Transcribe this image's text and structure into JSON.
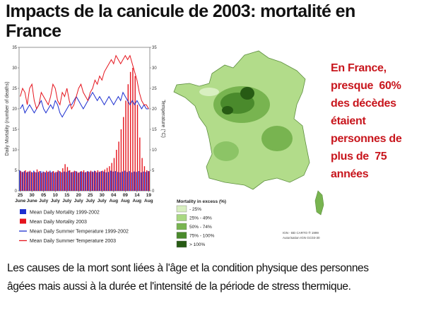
{
  "title": "Impacts de la canicule de 2003: mortalité en France",
  "chart_data": {
    "type": "bar",
    "ylabel": "Daily Mortality (number of deaths)",
    "y2label": "Temperature (°C)",
    "categories": [
      "25",
      null,
      null,
      null,
      null,
      "30",
      null,
      null,
      null,
      null,
      "05",
      null,
      null,
      null,
      null,
      "10",
      null,
      null,
      null,
      null,
      "15",
      null,
      null,
      null,
      null,
      "20",
      null,
      null,
      null,
      null,
      "25",
      null,
      null,
      null,
      null,
      "30",
      null,
      null,
      null,
      null,
      "04",
      null,
      null,
      null,
      null,
      "09",
      null,
      null,
      null,
      null,
      "14",
      null,
      null,
      null,
      null,
      "19"
    ],
    "category_months": [
      "June",
      null,
      null,
      null,
      null,
      "June",
      null,
      null,
      null,
      null,
      "July",
      null,
      null,
      null,
      null,
      "July",
      null,
      null,
      null,
      null,
      "July",
      null,
      null,
      null,
      null,
      "July",
      null,
      null,
      null,
      null,
      "July",
      null,
      null,
      null,
      null,
      "July",
      null,
      null,
      null,
      null,
      "Aug",
      null,
      null,
      null,
      null,
      "Aug",
      null,
      null,
      null,
      null,
      "Aug",
      null,
      null,
      null,
      null,
      "Aug"
    ],
    "ylim": [
      0,
      35
    ],
    "yticks": [
      0,
      5,
      10,
      15,
      20,
      25,
      30,
      35
    ],
    "y2lim": [
      0,
      35
    ],
    "y2ticks": [
      0,
      5,
      10,
      15,
      20,
      25,
      30,
      35
    ],
    "series": [
      {
        "name": "Mean Daily Mortality 1999-2002",
        "kind": "bar",
        "color": "#1d2fd0",
        "values": [
          5,
          4.6,
          4.8,
          4.5,
          4.7,
          4.6,
          4.9,
          4.5,
          4.6,
          4.8,
          4.7,
          4.5,
          4.6,
          4.9,
          4.7,
          4.4,
          4.6,
          4.8,
          4.5,
          4.7,
          4.6,
          4.9,
          4.5,
          4.6,
          4.8,
          4.4,
          4.7,
          4.6,
          4.5,
          4.8,
          4.6,
          4.7,
          4.9,
          4.5,
          4.6,
          4.8,
          4.7,
          4.5,
          4.6,
          4.9,
          4.7,
          4.8,
          4.6,
          4.5,
          4.7,
          4.9,
          4.6,
          4.8,
          4.5,
          4.7,
          4.6,
          4.8,
          4.5,
          4.7,
          4.6,
          4.8
        ]
      },
      {
        "name": "Mean Daily Mortality 2003",
        "kind": "bar",
        "color": "#e5141d",
        "values": [
          4.8,
          4.6,
          5,
          4.7,
          4.9,
          4.5,
          4.6,
          5.2,
          4.8,
          4.4,
          4.6,
          4.9,
          4.7,
          4.5,
          4.8,
          4.6,
          5,
          4.7,
          5.5,
          6.5,
          5.8,
          5,
          4.6,
          4.9,
          4.7,
          4.5,
          4.8,
          5,
          4.6,
          4.7,
          4.9,
          4.6,
          4.8,
          5,
          4.7,
          4.9,
          5.2,
          5.6,
          6,
          6.8,
          8,
          10,
          12,
          15,
          18,
          22,
          26,
          29,
          30,
          28,
          21,
          13,
          8,
          6,
          5,
          4.8
        ]
      },
      {
        "name": "Mean Daily Summer Temperature 1999-2002",
        "kind": "line",
        "axis": "y2",
        "color": "#1d2fd0",
        "values": [
          20,
          21,
          19,
          20,
          21,
          20,
          19,
          20,
          21,
          22,
          20,
          19,
          20,
          21,
          20,
          22,
          21,
          19,
          18,
          19,
          20,
          21,
          21,
          22,
          23,
          22,
          21,
          20,
          21,
          22,
          23,
          24,
          23,
          22,
          23,
          22,
          21,
          22,
          23,
          22,
          21,
          22,
          23,
          22,
          24,
          23,
          22,
          21,
          22,
          21,
          22,
          21,
          20,
          21,
          20,
          20
        ]
      },
      {
        "name": "Mean Daily Summer Temperature 2003",
        "kind": "line",
        "axis": "y2",
        "color": "#e5141d",
        "values": [
          23,
          25,
          24,
          21,
          25,
          26,
          22,
          20,
          21,
          24,
          23,
          22,
          21,
          23,
          26,
          25,
          22,
          21,
          24,
          23,
          25,
          22,
          20,
          21,
          23,
          25,
          26,
          24,
          23,
          22,
          24,
          25,
          27,
          26,
          28,
          27,
          29,
          30,
          31,
          32,
          31,
          33,
          32,
          31,
          32,
          33,
          32,
          33,
          31,
          29,
          27,
          24,
          22,
          21,
          21,
          20
        ]
      }
    ]
  },
  "map": {
    "legend_title": "Mortality in excess (%)",
    "legend": [
      {
        "label": "- 25%",
        "color": "#d8efc0"
      },
      {
        "label": "25% - 49%",
        "color": "#a9d882"
      },
      {
        "label": "50% - 74%",
        "color": "#78b450"
      },
      {
        "label": "75% - 100%",
        "color": "#4a8a2c"
      },
      {
        "label": "> 100%",
        "color": "#275b14"
      }
    ],
    "credit": [
      "IGN - BD CARTO ® 1999",
      "Autorisation IGN GC03-30"
    ]
  },
  "note": [
    "En France,",
    "presque  60%",
    "des décèdes",
    "étaient",
    "personnes de",
    "plus de  75",
    "années"
  ],
  "bottom": [
    "Les causes de la mort sont liées à l'âge et la condition physique des personnes",
    "âgées mais aussi à la durée et l'intensité de la période de stress thermique."
  ]
}
